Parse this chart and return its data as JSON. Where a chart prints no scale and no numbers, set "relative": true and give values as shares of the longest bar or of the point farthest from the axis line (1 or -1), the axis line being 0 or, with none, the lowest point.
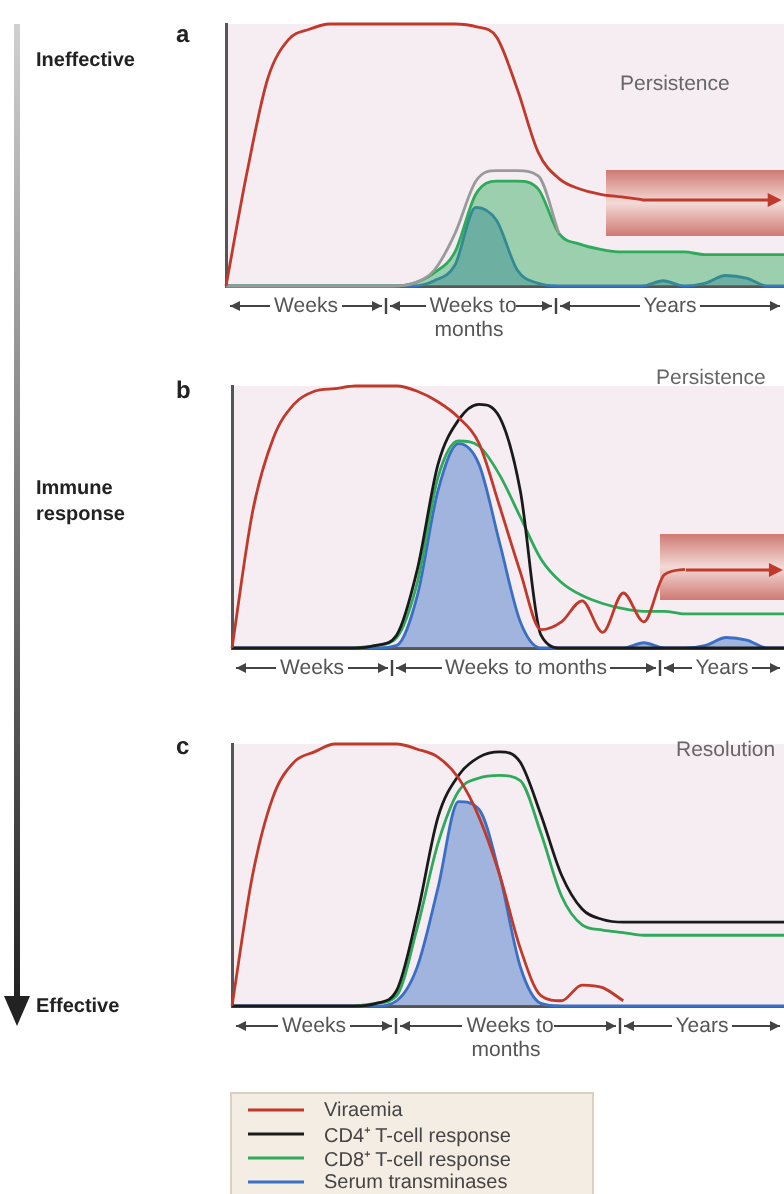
{
  "chart_data": [
    {
      "type": "line",
      "title": "a",
      "relative": true,
      "tick_labels": false,
      "categories": [
        null,
        null,
        null,
        null,
        null,
        null,
        null,
        null,
        null,
        null,
        null,
        null,
        null,
        null,
        null,
        null,
        null,
        null,
        null,
        null,
        null,
        null,
        null,
        null,
        null,
        null,
        null,
        null
      ],
      "series": [
        {
          "color": "#c0392b",
          "values": [
            0,
            0.43,
            0.79,
            0.94,
            0.98,
            1,
            1,
            1,
            1,
            1,
            1,
            1,
            0.99,
            0.95,
            0.75,
            0.51,
            0.41,
            0.37,
            0.35,
            0.34,
            0.33,
            null,
            null,
            null,
            null,
            null,
            null,
            null
          ]
        },
        {
          "color": "#9a9a9a",
          "values": [
            0,
            0,
            0,
            0,
            0,
            0,
            0,
            0,
            0,
            0.01,
            0.06,
            0.2,
            0.4,
            0.44,
            0.44,
            0.42,
            0.2,
            null,
            null,
            null,
            null,
            null,
            null,
            null,
            null,
            null,
            null,
            null
          ]
        },
        {
          "type": "area",
          "color": "#2eaa5a",
          "values": [
            0,
            0,
            0,
            0,
            0,
            0,
            0,
            0,
            0,
            0.01,
            0.05,
            0.13,
            0.35,
            0.4,
            0.4,
            0.37,
            0.2,
            0.16,
            0.14,
            0.13,
            0.13,
            0.13,
            0.13,
            0.12,
            0.12,
            0.12,
            0.12,
            0.12
          ]
        },
        {
          "type": "area",
          "color": "#3a6fc4",
          "values": [
            0,
            0,
            0,
            0,
            0,
            0,
            0,
            0,
            0,
            0,
            0.02,
            0.08,
            0.3,
            0.25,
            0.06,
            0.01,
            0,
            0,
            0,
            0,
            0,
            0.02,
            0,
            0.01,
            0.04,
            0.03,
            0,
            0
          ]
        }
      ],
      "annotations": [
        "Ineffective",
        "Persistence",
        "Weeks",
        "Weeks to months",
        "Years"
      ]
    },
    {
      "type": "line",
      "title": "b",
      "relative": true,
      "tick_labels": false,
      "categories": [
        null,
        null,
        null,
        null,
        null,
        null,
        null,
        null,
        null,
        null,
        null,
        null,
        null,
        null,
        null,
        null,
        null,
        null,
        null,
        null,
        null,
        null,
        null,
        null,
        null,
        null,
        null,
        null
      ],
      "series": [
        {
          "color": "#c0392b",
          "values": [
            0,
            0.52,
            0.8,
            0.93,
            0.98,
            0.99,
            1,
            1,
            1,
            0.98,
            0.94,
            0.88,
            0.78,
            0.54,
            0.29,
            0.07,
            0.1,
            0.18,
            0.06,
            0.21,
            0.1,
            0.28,
            0.3,
            null,
            null,
            null,
            null,
            null
          ]
        },
        {
          "color": "#1a1a1a",
          "values": [
            0,
            0,
            0,
            0,
            0,
            0,
            0,
            0.01,
            0.05,
            0.3,
            0.7,
            0.87,
            0.93,
            0.88,
            0.6,
            0.05,
            0,
            0,
            0,
            0,
            0,
            0,
            0,
            0,
            0,
            0,
            0,
            0
          ]
        },
        {
          "color": "#2eaa5a",
          "values": [
            null,
            null,
            null,
            null,
            null,
            null,
            0,
            0.01,
            0.04,
            0.25,
            0.65,
            0.79,
            0.77,
            0.66,
            0.5,
            0.34,
            0.25,
            0.2,
            0.17,
            0.15,
            0.14,
            0.14,
            0.13,
            0.13,
            0.13,
            0.13,
            0.13,
            0.13
          ]
        },
        {
          "type": "area",
          "color": "#3a6fc4",
          "values": [
            0,
            0,
            0,
            0,
            0,
            0,
            0,
            0,
            0.01,
            0.2,
            0.6,
            0.78,
            0.7,
            0.4,
            0.1,
            0,
            0,
            0,
            0,
            0,
            0.02,
            0,
            0,
            0.01,
            0.04,
            0.03,
            0,
            0
          ]
        }
      ],
      "annotations": [
        "Immune response",
        "Persistence",
        "Weeks",
        "Weeks to months",
        "Years"
      ]
    },
    {
      "type": "line",
      "title": "c",
      "relative": true,
      "tick_labels": false,
      "legend": "bottom",
      "categories": [
        null,
        null,
        null,
        null,
        null,
        null,
        null,
        null,
        null,
        null,
        null,
        null,
        null,
        null,
        null,
        null,
        null,
        null,
        null,
        null,
        null,
        null,
        null,
        null,
        null,
        null,
        null,
        null
      ],
      "series": [
        {
          "name": "Viraemia",
          "color": "#c0392b",
          "values": [
            0,
            0.5,
            0.8,
            0.93,
            0.97,
            1,
            1,
            1,
            1,
            0.98,
            0.95,
            0.87,
            0.72,
            0.5,
            0.22,
            0.04,
            0.02,
            0.08,
            0.07,
            0.02,
            null,
            null,
            null,
            null,
            null,
            null,
            null,
            null
          ]
        },
        {
          "name": "CD4⁺ T-cell response",
          "color": "#1a1a1a",
          "values": [
            0,
            0,
            0,
            0,
            0,
            0,
            0,
            0.01,
            0.06,
            0.35,
            0.72,
            0.88,
            0.95,
            0.97,
            0.93,
            0.73,
            0.5,
            0.37,
            0.33,
            0.32,
            0.32,
            0.32,
            0.32,
            0.32,
            0.32,
            0.32,
            0.32,
            0.32
          ]
        },
        {
          "name": "CD8⁺ T-cell response",
          "color": "#2eaa5a",
          "values": [
            null,
            null,
            null,
            null,
            null,
            null,
            0,
            0.01,
            0.04,
            0.3,
            0.62,
            0.82,
            0.87,
            0.88,
            0.86,
            0.66,
            0.42,
            0.31,
            0.29,
            0.28,
            0.27,
            0.27,
            0.27,
            0.27,
            0.27,
            0.27,
            0.27,
            0.27
          ]
        },
        {
          "name": "Serum transminases",
          "type": "area",
          "color": "#3a6fc4",
          "values": [
            0,
            0,
            0,
            0,
            0,
            0,
            0,
            0,
            0.02,
            0.15,
            0.45,
            0.78,
            0.75,
            0.5,
            0.15,
            0.01,
            0,
            0,
            0,
            0,
            0,
            0,
            0,
            0,
            0,
            0,
            0,
            0
          ]
        }
      ],
      "annotations": [
        "Effective",
        "Resolution",
        "Weeks",
        "Weeks to months",
        "Years"
      ]
    }
  ]
}
